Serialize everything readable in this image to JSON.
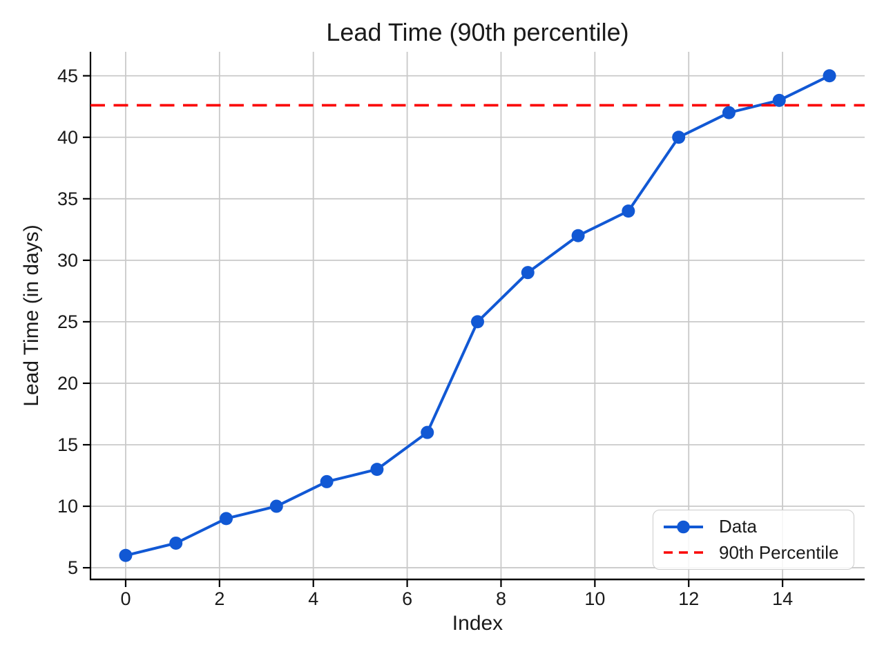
{
  "chart_data": {
    "type": "line",
    "title": "Lead Time (90th percentile)",
    "xlabel": "Index",
    "ylabel": "Lead Time (in days)",
    "x": [
      0,
      1.071,
      2.143,
      3.214,
      4.286,
      5.357,
      6.429,
      7.5,
      8.571,
      9.643,
      10.714,
      11.786,
      12.857,
      13.929,
      15
    ],
    "series": [
      {
        "name": "Data",
        "type": "line",
        "color": "#1158d4",
        "marker": "circle",
        "values": [
          6,
          7,
          9,
          10,
          12,
          13,
          16,
          25,
          29,
          32,
          34,
          40,
          42,
          43,
          45
        ]
      },
      {
        "name": "90th Percentile",
        "type": "hline",
        "color": "#fa0000",
        "line_style": "dashed",
        "value": 42.6
      }
    ],
    "xticks": [
      0,
      2,
      4,
      6,
      8,
      10,
      12,
      14
    ],
    "yticks": [
      5,
      10,
      15,
      20,
      25,
      30,
      35,
      40,
      45
    ],
    "xlim": [
      -0.75,
      15.75
    ],
    "ylim": [
      4.05,
      46.95
    ],
    "grid": true,
    "grid_color": "#c9c9c9",
    "axis_color": "#000000",
    "legend_position": "lower right"
  }
}
